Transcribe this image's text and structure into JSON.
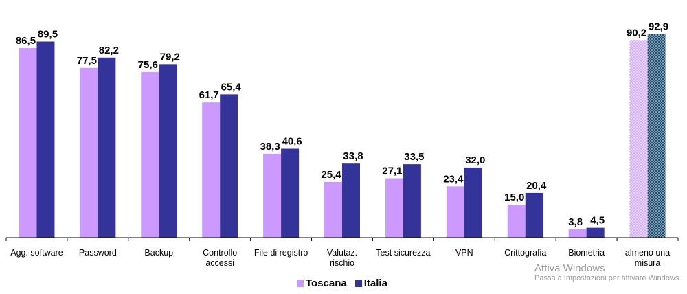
{
  "chart_data": {
    "type": "bar",
    "categories": [
      [
        "Agg. software"
      ],
      [
        "Password"
      ],
      [
        "Backup"
      ],
      [
        "Controllo",
        "accessi"
      ],
      [
        "File di registro"
      ],
      [
        "Valutaz.",
        "rischio"
      ],
      [
        "Test sicurezza"
      ],
      [
        "VPN"
      ],
      [
        "Crittografia"
      ],
      [
        "Biometria"
      ],
      [
        "almeno una",
        "misura"
      ]
    ],
    "series": [
      {
        "name": "Toscana",
        "color": "#cc99ff",
        "values": [
          86.5,
          77.5,
          75.6,
          61.7,
          38.3,
          25.4,
          27.1,
          23.4,
          15.0,
          3.8,
          90.2
        ],
        "labels": [
          "86,5",
          "77,5",
          "75,6",
          "61,7",
          "38,3",
          "25,4",
          "27,1",
          "23,4",
          "15,0",
          "3,8",
          "90,2"
        ]
      },
      {
        "name": "Italia",
        "color": "#333399",
        "values": [
          89.5,
          82.2,
          79.2,
          65.4,
          40.6,
          33.8,
          33.5,
          32.0,
          20.4,
          4.5,
          92.9
        ],
        "labels": [
          "89,5",
          "82,2",
          "79,2",
          "65,4",
          "40,6",
          "33,8",
          "33,5",
          "32,0",
          "20,4",
          "4,5",
          "92,9"
        ]
      }
    ],
    "highlight_last_category": "patterned",
    "ylim": [
      0,
      100
    ],
    "grid": false,
    "legend_position": "bottom-center"
  },
  "watermark": {
    "title": "Attiva Windows",
    "subtitle": "Passa a Impostazioni per attivare Windows."
  }
}
